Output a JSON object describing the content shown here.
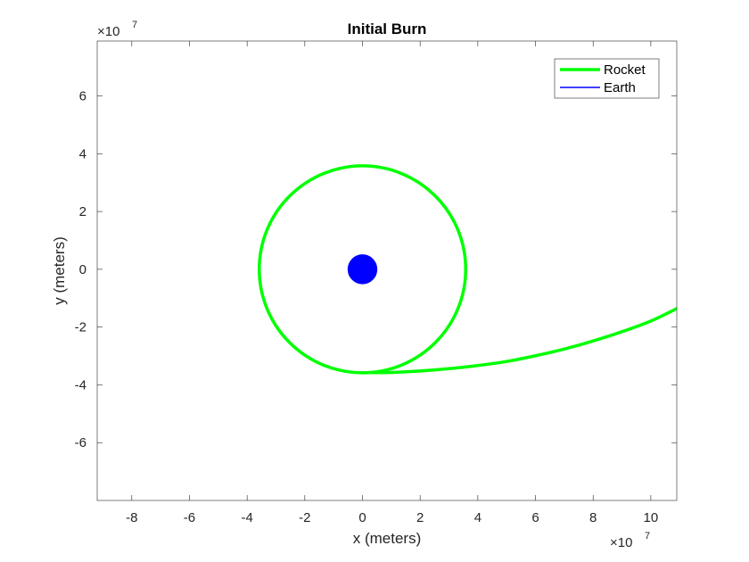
{
  "chart_data": {
    "type": "line",
    "title": "Initial Burn",
    "xlabel": "x (meters)",
    "ylabel": "y (meters)",
    "xlim": [
      -9.2,
      10.9
    ],
    "ylim": [
      -8.0,
      7.9
    ],
    "x_exponent": {
      "base": "×10",
      "power": "7"
    },
    "y_exponent": {
      "base": "×10",
      "power": "7"
    },
    "x_ticks": [
      -8,
      -6,
      -4,
      -2,
      0,
      2,
      4,
      6,
      8,
      10
    ],
    "y_ticks": [
      -6,
      -4,
      -2,
      0,
      2,
      4,
      6
    ],
    "x_tick_labels": [
      "-8",
      "-6",
      "-4",
      "-2",
      "0",
      "2",
      "4",
      "6",
      "8",
      "10"
    ],
    "y_tick_labels": [
      "-6",
      "-4",
      "-2",
      "0",
      "2",
      "4",
      "6"
    ],
    "grid": false,
    "legend_position": "top-right",
    "series": [
      {
        "name": "Rocket",
        "color": "#00ff00",
        "kind": "line",
        "segments": [
          {
            "shape": "circle",
            "center": [
              0,
              0
            ],
            "radius": 3.58
          },
          {
            "shape": "curve",
            "x": [
              0,
              1,
              2,
              3,
              4,
              5,
              6,
              7,
              8,
              9,
              10,
              10.9
            ],
            "y": [
              -3.58,
              -3.57,
              -3.52,
              -3.44,
              -3.33,
              -3.19,
              -2.99,
              -2.76,
              -2.48,
              -2.16,
              -1.79,
              -1.36
            ]
          }
        ]
      },
      {
        "name": "Earth",
        "color": "#0000ff",
        "kind": "marker",
        "x": [
          0
        ],
        "y": [
          0
        ],
        "marker_radius_data": 0.5
      }
    ]
  }
}
